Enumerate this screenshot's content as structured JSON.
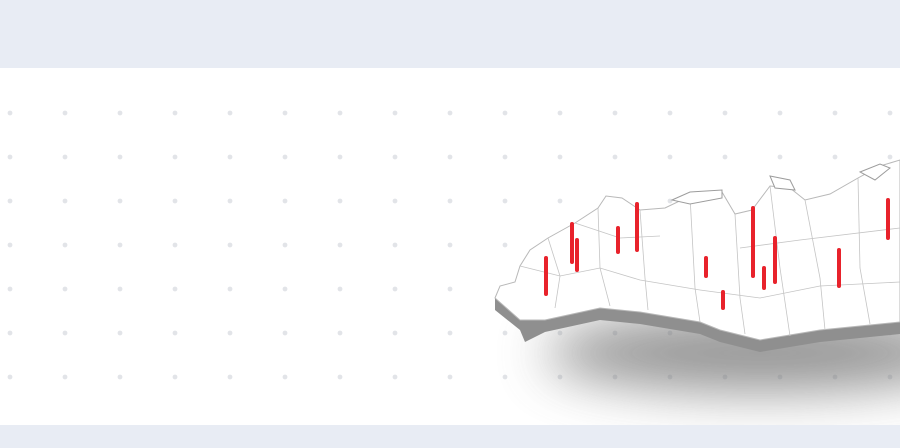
{
  "colors": {
    "band": "#e8ecf4",
    "panel": "#ffffff",
    "dot": "#e2e4e8",
    "map_fill": "#ffffff",
    "map_border": "#b8b8b8",
    "map_side": "#8f8f8f",
    "shadow": "#6e6e6e",
    "marker": "#e8222b"
  },
  "map": {
    "marker_count": 14,
    "marker_shape": "vertical-bar"
  }
}
